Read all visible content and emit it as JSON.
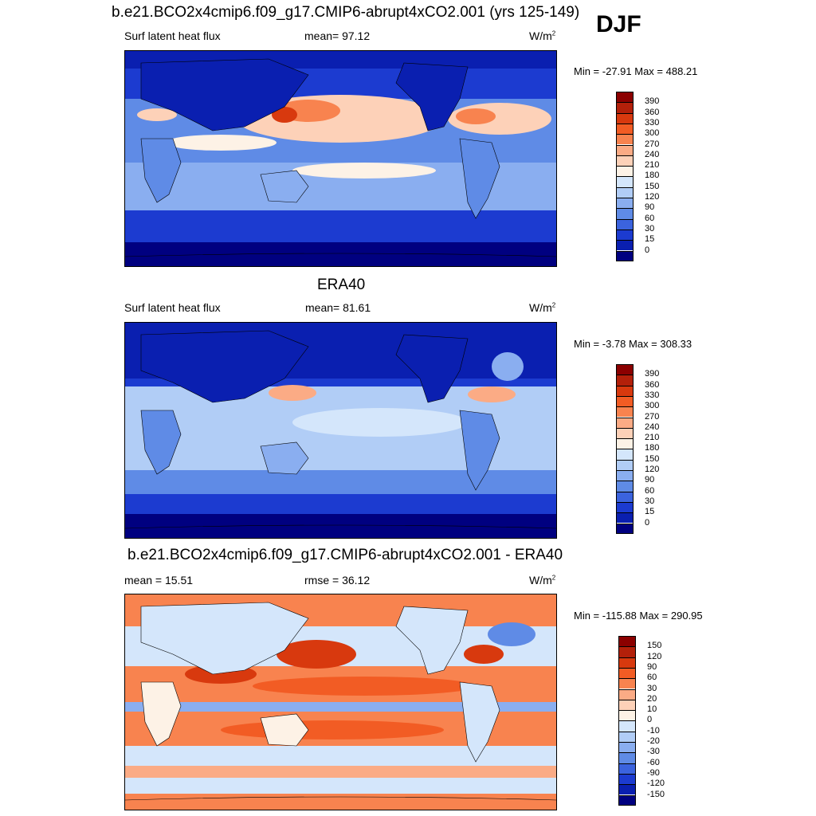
{
  "season": "DJF",
  "panels": [
    {
      "id": "model",
      "title": "b.e21.BCO2x4cmip6.f09_g17.CMIP6-abrupt4xCO2.001 (yrs 125-149)",
      "left_label": "Surf latent heat flux",
      "center_label": "mean=  97.12",
      "units": "W/m",
      "units_sup": "2",
      "minmax": "Min = -27.91 Max = 488.21",
      "colorbar": {
        "labels": [
          "390",
          "360",
          "330",
          "300",
          "270",
          "240",
          "210",
          "180",
          "150",
          "120",
          "90",
          "60",
          "30",
          "15",
          "0"
        ],
        "colors": [
          "#8b0000",
          "#b3200a",
          "#d8390e",
          "#f25c24",
          "#f8834f",
          "#fbab85",
          "#fdd1b8",
          "#fdf2e6",
          "#d4e6fb",
          "#b1cdf6",
          "#8aaef0",
          "#5f8be6",
          "#3b63de",
          "#1c3bd0",
          "#0a1fb0",
          "#000080"
        ]
      }
    },
    {
      "id": "obs",
      "title": "ERA40",
      "left_label": "Surf latent heat flux",
      "center_label": "mean=  81.61",
      "units": "W/m",
      "units_sup": "2",
      "minmax": "Min =  -3.78 Max = 308.33",
      "colorbar": {
        "labels": [
          "390",
          "360",
          "330",
          "300",
          "270",
          "240",
          "210",
          "180",
          "150",
          "120",
          "90",
          "60",
          "30",
          "15",
          "0"
        ],
        "colors": [
          "#8b0000",
          "#b3200a",
          "#d8390e",
          "#f25c24",
          "#f8834f",
          "#fbab85",
          "#fdd1b8",
          "#fdf2e6",
          "#d4e6fb",
          "#b1cdf6",
          "#8aaef0",
          "#5f8be6",
          "#3b63de",
          "#1c3bd0",
          "#0a1fb0",
          "#000080"
        ]
      }
    },
    {
      "id": "diff",
      "title": "b.e21.BCO2x4cmip6.f09_g17.CMIP6-abrupt4xCO2.001 - ERA40",
      "left_label": "mean =  15.51",
      "center_label": "rmse =  36.12",
      "units": "W/m",
      "units_sup": "2",
      "minmax": "Min = -115.88 Max = 290.95",
      "colorbar": {
        "labels": [
          "150",
          "120",
          "90",
          "60",
          "30",
          "20",
          "10",
          "0",
          "-10",
          "-20",
          "-30",
          "-60",
          "-90",
          "-120",
          "-150"
        ],
        "colors": [
          "#8b0000",
          "#b3200a",
          "#d8390e",
          "#f25c24",
          "#f8834f",
          "#fbab85",
          "#fdd1b8",
          "#fdf2e6",
          "#d4e6fb",
          "#b1cdf6",
          "#8aaef0",
          "#5f8be6",
          "#3b63de",
          "#1c3bd0",
          "#0a1fb0",
          "#000080"
        ]
      }
    }
  ]
}
